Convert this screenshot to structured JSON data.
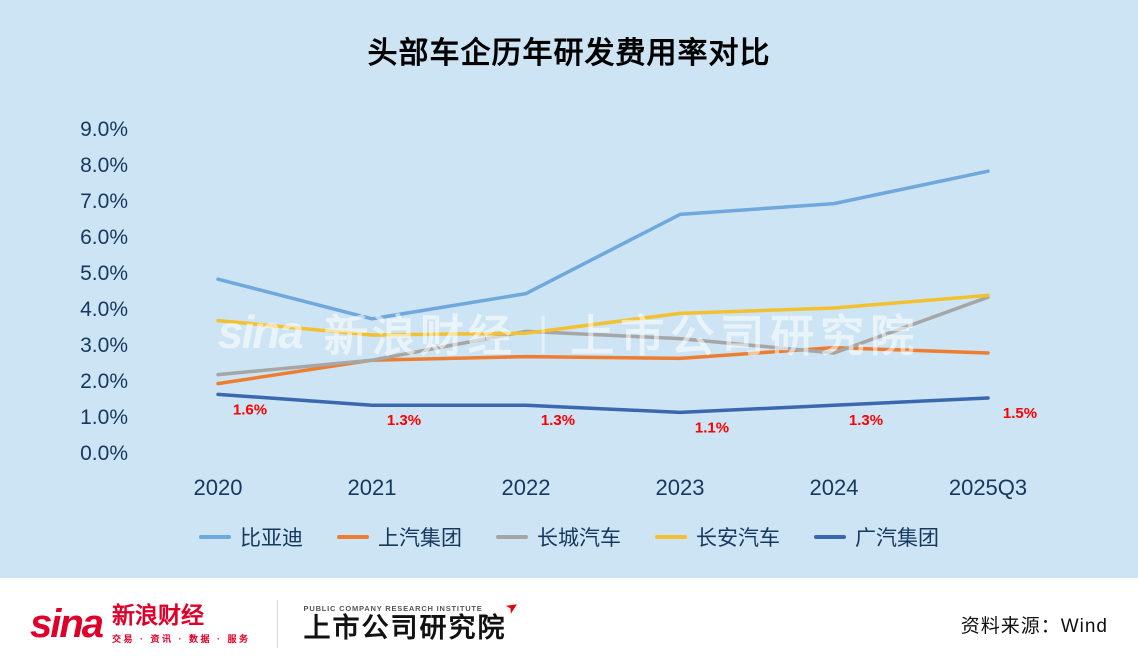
{
  "title": "头部车企历年研发费用率对比",
  "chart_data": {
    "type": "line",
    "categories": [
      "2020",
      "2021",
      "2022",
      "2023",
      "2024",
      "2025Q3"
    ],
    "series": [
      {
        "name": "比亚迪",
        "color": "#6FA8DC",
        "values": [
          4.8,
          3.7,
          4.4,
          6.6,
          6.9,
          7.8
        ]
      },
      {
        "name": "上汽集团",
        "color": "#ED7D31",
        "values": [
          1.9,
          2.55,
          2.65,
          2.6,
          2.9,
          2.75
        ]
      },
      {
        "name": "长城汽车",
        "color": "#A6A6A6",
        "values": [
          2.15,
          2.55,
          3.35,
          3.15,
          2.75,
          4.3
        ]
      },
      {
        "name": "长安汽车",
        "color": "#F3C130",
        "values": [
          3.65,
          3.25,
          3.3,
          3.85,
          4.0,
          4.35
        ]
      },
      {
        "name": "广汽集团",
        "color": "#3A67AE",
        "values": [
          1.6,
          1.3,
          1.3,
          1.1,
          1.3,
          1.5
        ],
        "data_labels": [
          "1.6%",
          "1.3%",
          "1.3%",
          "1.1%",
          "1.3%",
          "1.5%"
        ],
        "label_color": "#FF0000"
      }
    ],
    "ylim": [
      0,
      9
    ],
    "yticks": [
      "0.0%",
      "1.0%",
      "2.0%",
      "3.0%",
      "4.0%",
      "5.0%",
      "6.0%",
      "7.0%",
      "8.0%",
      "9.0%"
    ],
    "grid": false,
    "legend_position": "bottom"
  },
  "watermark": {
    "sina": "sina",
    "brand": "新浪财经",
    "divider": "|",
    "institute": "上市公司研究院"
  },
  "footer": {
    "sina_logo": "sina",
    "sina_brand": "新浪财经",
    "sina_tagline": "交易 · 资讯 · 数据 · 服务",
    "institute_subtitle": "PUBLIC COMPANY RESEARCH INSTITUTE",
    "institute_name": "上市公司研究院",
    "source": "资料来源：Wind"
  },
  "colors": {
    "background": "#CCE4F3",
    "axis_text": "#17375E",
    "title_text": "#000000",
    "data_label_red": "#FF0000",
    "footer_red": "#DF0029"
  }
}
